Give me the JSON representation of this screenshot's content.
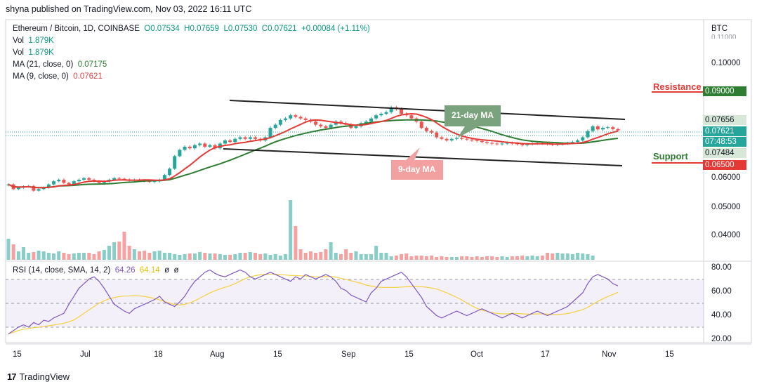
{
  "header": {
    "published_line": "shyna published on TradingView.com, Nov 03, 2022 16:11 UTC",
    "symbol": "Ethereum / Bitcoin, 1D, COINBASE",
    "ohlc": {
      "o": "O0.07534",
      "h": "H0.07659",
      "l": "L0.07530",
      "c": "C0.07621",
      "change": "+0.00084 (+1.11%)"
    },
    "vol1_label": "Vol",
    "vol1_value": "1.879K",
    "vol2_label": "Vol",
    "vol2_value": "1.879K",
    "ma21_label": "MA (21, close, 0)",
    "ma21_value": "0.07175",
    "ma9_label": "MA (9, close, 0)",
    "ma9_value": "0.07621",
    "currency": "BTC"
  },
  "price_axis": {
    "ticks": [
      "0.10000",
      "0.09000",
      "0.06500",
      "0.06000",
      "0.05000",
      "0.04000"
    ],
    "top_cut_label": "0.11000",
    "high_tag": "0.07656",
    "last_tag": "0.07621",
    "countdown_tag": "07:48:53",
    "low_tag": "0.07484"
  },
  "annotations": {
    "resistance": "Resistance",
    "support": "Support",
    "ma21_callout": "21-day MA",
    "ma9_callout": "9-day MA"
  },
  "rsi": {
    "label": "RSI (14, close, SMA, 14, 2)",
    "value": "64.26",
    "sma_value": "64.14",
    "flags": [
      "ø",
      "ø"
    ],
    "ticks": [
      "80.00",
      "60.00",
      "40.00",
      "20.00"
    ]
  },
  "time_axis": [
    "15",
    "Jul",
    "18",
    "Aug",
    "15",
    "Sep",
    "15",
    "Oct",
    "17",
    "Nov",
    "15"
  ],
  "footer": {
    "brand": "TradingView"
  },
  "colors": {
    "up": "#26a69a",
    "down": "#ef5350",
    "ma21": "#2e7d32",
    "ma9": "#e53935",
    "rsi": "#7e57c2",
    "rsi_sma": "#f5d142",
    "resistance": "#e53935",
    "support": "#e53935"
  },
  "chart_data": {
    "type": "candlestick",
    "title": "Ethereum / Bitcoin, 1D, COINBASE",
    "y_axis": {
      "unit": "BTC",
      "range": [
        0.035,
        0.111
      ]
    },
    "close_series": [
      0.059,
      0.0575,
      0.058,
      0.0583,
      0.0585,
      0.057,
      0.0575,
      0.058,
      0.059,
      0.06,
      0.0605,
      0.0595,
      0.059,
      0.06,
      0.0605,
      0.061,
      0.0605,
      0.06,
      0.0595,
      0.06,
      0.0605,
      0.061,
      0.0608,
      0.0606,
      0.0602,
      0.0605,
      0.0603,
      0.06,
      0.0598,
      0.06,
      0.0605,
      0.062,
      0.064,
      0.068,
      0.07,
      0.071,
      0.0705,
      0.0715,
      0.072,
      0.071,
      0.0715,
      0.0705,
      0.072,
      0.073,
      0.0725,
      0.0735,
      0.074,
      0.0735,
      0.074,
      0.0735,
      0.073,
      0.074,
      0.077,
      0.078,
      0.0795,
      0.08,
      0.081,
      0.0805,
      0.08,
      0.0795,
      0.079,
      0.078,
      0.0775,
      0.077,
      0.078,
      0.079,
      0.0785,
      0.078,
      0.077,
      0.0775,
      0.0785,
      0.079,
      0.08,
      0.081,
      0.0815,
      0.082,
      0.0835,
      0.083,
      0.0815,
      0.081,
      0.08,
      0.079,
      0.077,
      0.076,
      0.0755,
      0.074,
      0.0735,
      0.073,
      0.0735,
      0.0738,
      0.0735,
      0.0733,
      0.073,
      0.0728,
      0.0725,
      0.0722,
      0.072,
      0.0718,
      0.072,
      0.0722,
      0.072,
      0.0718,
      0.0715,
      0.0718,
      0.072,
      0.0722,
      0.072,
      0.0718,
      0.0716,
      0.0718,
      0.072,
      0.0722,
      0.0725,
      0.073,
      0.074,
      0.076,
      0.0775,
      0.0765,
      0.077,
      0.0772,
      0.0766,
      0.0762
    ],
    "volume_series": [
      0.3,
      0.22,
      0.12,
      0.18,
      0.1,
      0.11,
      0.13,
      0.12,
      0.1,
      0.09,
      0.12,
      0.1,
      0.08,
      0.09,
      0.1,
      0.1,
      0.1,
      0.08,
      0.12,
      0.14,
      0.2,
      0.25,
      0.26,
      0.4,
      0.2,
      0.15,
      0.12,
      0.13,
      0.1,
      0.12,
      0.13,
      0.1,
      0.1,
      0.08,
      0.07,
      0.08,
      0.09,
      0.09,
      0.11,
      0.1,
      0.09,
      0.09,
      0.08,
      0.07,
      0.07,
      0.08,
      0.1,
      0.1,
      0.11,
      0.1,
      0.08,
      0.09,
      0.07,
      0.08,
      0.06,
      0.08,
      0.85,
      0.48,
      0.15,
      0.1,
      0.12,
      0.1,
      0.11,
      0.15,
      0.25,
      0.1,
      0.08,
      0.15,
      0.1,
      0.12,
      0.08,
      0.08,
      0.08,
      0.2,
      0.1,
      0.1,
      0.05,
      0.06,
      0.08,
      0.09,
      0.05,
      0.06,
      0.06,
      0.05,
      0.06,
      0.04,
      0.05,
      0.04,
      0.04,
      0.04,
      0.05,
      0.05,
      0.04,
      0.05,
      0.04,
      0.05,
      0.05,
      0.04,
      0.05,
      0.04,
      0.05,
      0.05,
      0.06,
      0.05,
      0.06,
      0.05,
      0.06,
      0.1,
      0.09,
      0.1,
      0.09,
      0.09,
      0.08,
      0.1,
      0.09,
      0.08,
      0.06
    ],
    "rsi_series": [
      22,
      25,
      28,
      30,
      28,
      32,
      30,
      34,
      33,
      36,
      38,
      40,
      48,
      55,
      62,
      66,
      70,
      72,
      68,
      62,
      55,
      48,
      45,
      42,
      40,
      44,
      46,
      48,
      50,
      52,
      55,
      50,
      48,
      46,
      50,
      55,
      62,
      68,
      72,
      76,
      78,
      75,
      73,
      72,
      74,
      76,
      78,
      76,
      72,
      70,
      72,
      74,
      76,
      74,
      72,
      70,
      68,
      72,
      70,
      74,
      72,
      70,
      72,
      74,
      72,
      68,
      62,
      60,
      56,
      54,
      52,
      50,
      58,
      62,
      68,
      70,
      72,
      74,
      76,
      72,
      66,
      60,
      54,
      46,
      42,
      38,
      36,
      38,
      40,
      42,
      40,
      38,
      40,
      42,
      44,
      42,
      40,
      38,
      36,
      38,
      40,
      38,
      36,
      38,
      40,
      42,
      40,
      38,
      40,
      42,
      44,
      46,
      50,
      54,
      58,
      66,
      72,
      74,
      72,
      70,
      66,
      64
    ],
    "rsi_range": [
      15,
      85
    ],
    "rsi_levels": [
      70,
      50,
      30
    ],
    "resistance_level": 0.09,
    "support_level": 0.065,
    "x_tick_labels": [
      "15",
      "Jul",
      "18",
      "Aug",
      "15",
      "Sep",
      "15",
      "Oct",
      "17",
      "Nov",
      "15"
    ]
  }
}
